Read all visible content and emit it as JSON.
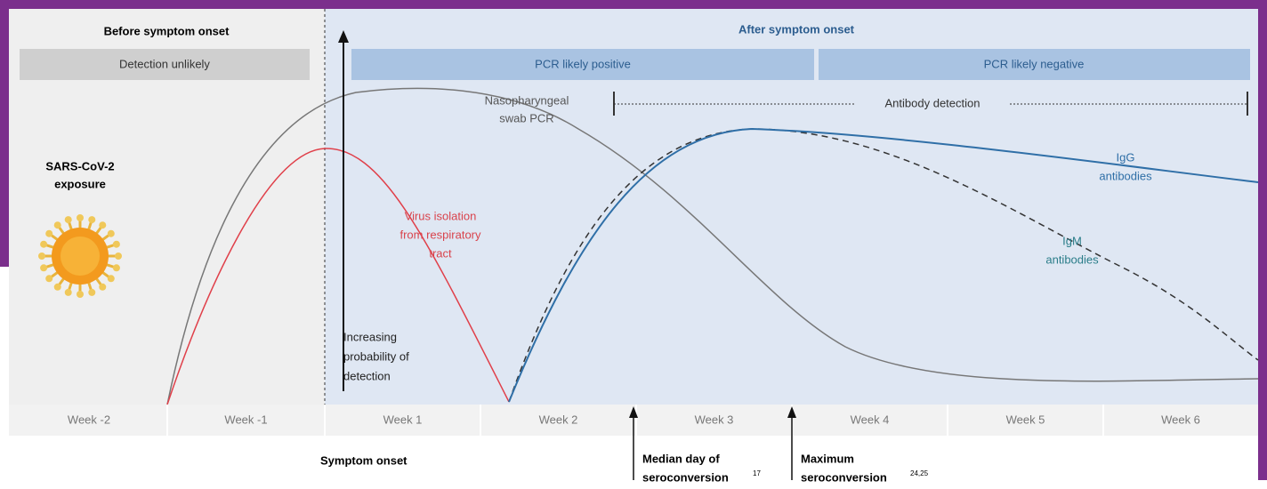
{
  "header": {
    "before": "Before symptom onset",
    "after": "After symptom onset"
  },
  "bars": {
    "before": "Detection unlikely",
    "pcr_positive": "PCR likely positive",
    "pcr_negative": "PCR likely negative"
  },
  "exposure": {
    "lines": [
      "SARS-CoV-2",
      "exposure"
    ]
  },
  "curves": {
    "pcr": {
      "lines": [
        "Nasopharyngeal",
        "swab PCR"
      ]
    },
    "virus": {
      "lines": [
        "Virus isolation",
        "from respiratory",
        "tract"
      ]
    },
    "igg": {
      "lines": [
        "IgG",
        "antibodies"
      ]
    },
    "igm": {
      "lines": [
        "IgM",
        "antibodies"
      ]
    }
  },
  "antibody_detection": "Antibody detection",
  "probability": {
    "lines": [
      "Increasing",
      "probability of",
      "detection"
    ]
  },
  "weeks": [
    "Week -2",
    "Week -1",
    "Week 1",
    "Week 2",
    "Week 3",
    "Week 4",
    "Week 5",
    "Week 6"
  ],
  "markers": {
    "onset": "Symptom onset",
    "median": {
      "lines": [
        "Median day of",
        "seroconversion"
      ],
      "ref": "17"
    },
    "maximum": {
      "lines": [
        "Maximum",
        "seroconversion"
      ],
      "ref": "24,25"
    }
  }
}
